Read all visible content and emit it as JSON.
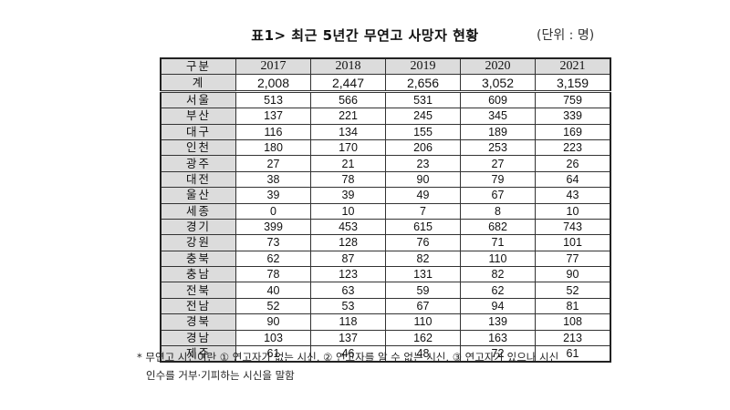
{
  "title": "표1> 최근 5년간 무연고 사망자 현황",
  "unit": "(단위 : 명)",
  "table": {
    "corner": "구분",
    "years": [
      "2017",
      "2018",
      "2019",
      "2020",
      "2021"
    ],
    "rows": [
      {
        "label": "계",
        "values": [
          "2,008",
          "2,447",
          "2,656",
          "3,052",
          "3,159"
        ]
      },
      {
        "label": "서울",
        "values": [
          "513",
          "566",
          "531",
          "609",
          "759"
        ]
      },
      {
        "label": "부산",
        "values": [
          "137",
          "221",
          "245",
          "345",
          "339"
        ]
      },
      {
        "label": "대구",
        "values": [
          "116",
          "134",
          "155",
          "189",
          "169"
        ]
      },
      {
        "label": "인천",
        "values": [
          "180",
          "170",
          "206",
          "253",
          "223"
        ]
      },
      {
        "label": "광주",
        "values": [
          "27",
          "21",
          "23",
          "27",
          "26"
        ]
      },
      {
        "label": "대전",
        "values": [
          "38",
          "78",
          "90",
          "79",
          "64"
        ]
      },
      {
        "label": "울산",
        "values": [
          "39",
          "39",
          "49",
          "67",
          "43"
        ]
      },
      {
        "label": "세종",
        "values": [
          "0",
          "10",
          "7",
          "8",
          "10"
        ]
      },
      {
        "label": "경기",
        "values": [
          "399",
          "453",
          "615",
          "682",
          "743"
        ]
      },
      {
        "label": "강원",
        "values": [
          "73",
          "128",
          "76",
          "71",
          "101"
        ]
      },
      {
        "label": "충북",
        "values": [
          "62",
          "87",
          "82",
          "110",
          "77"
        ]
      },
      {
        "label": "충남",
        "values": [
          "78",
          "123",
          "131",
          "82",
          "90"
        ]
      },
      {
        "label": "전북",
        "values": [
          "40",
          "63",
          "59",
          "62",
          "52"
        ]
      },
      {
        "label": "전남",
        "values": [
          "52",
          "53",
          "67",
          "94",
          "81"
        ]
      },
      {
        "label": "경북",
        "values": [
          "90",
          "118",
          "110",
          "139",
          "108"
        ]
      },
      {
        "label": "경남",
        "values": [
          "103",
          "137",
          "162",
          "163",
          "213"
        ]
      },
      {
        "label": "제주",
        "values": [
          "61",
          "46",
          "48",
          "72",
          "61"
        ]
      }
    ]
  },
  "footnote": {
    "line1": "* 무연고 시신이란 ① 연고자가 없는 시신, ② 연고자를 알 수 없는 시신, ③ 연고자가 있으나 시신",
    "line2": "인수를 거부·기피하는 시신을 말함"
  }
}
